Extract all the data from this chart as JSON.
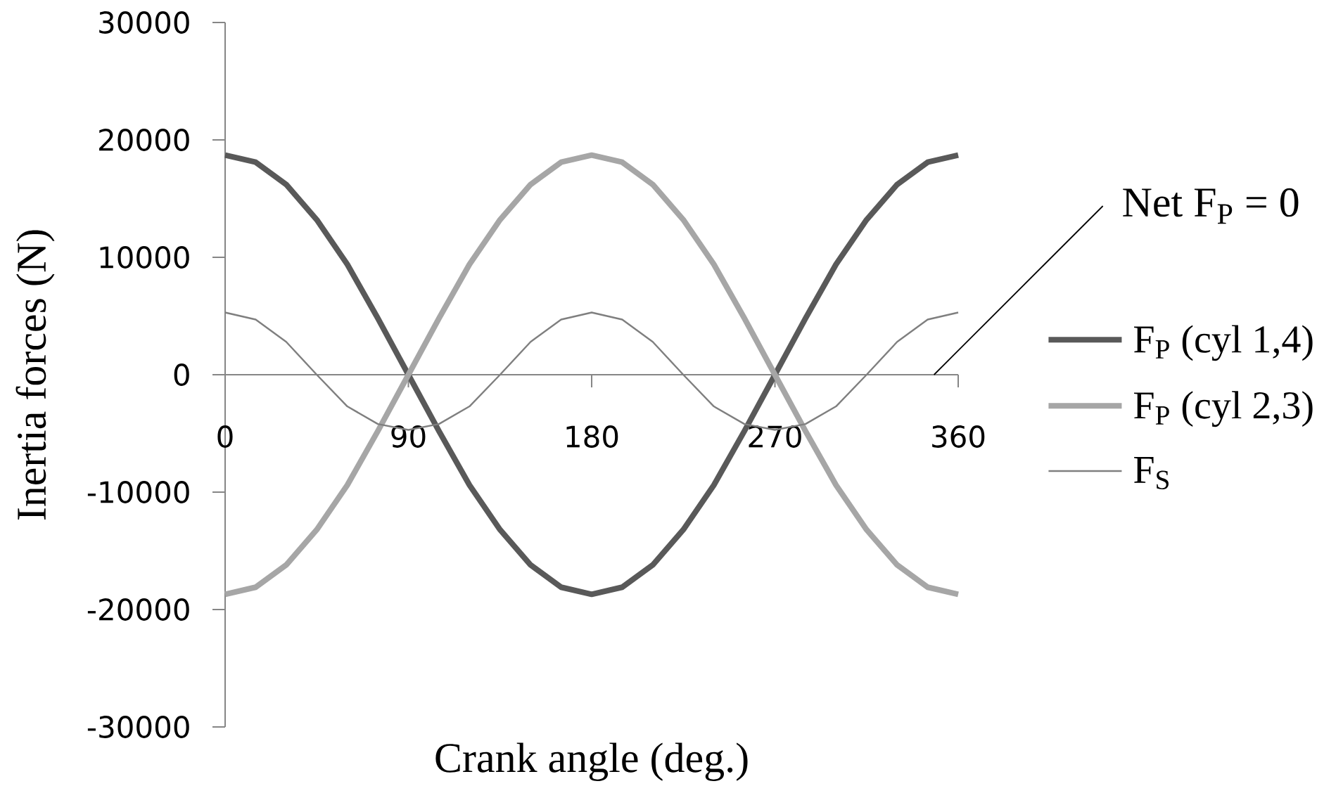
{
  "chart_data": {
    "type": "line",
    "xlabel": "Crank angle (deg.)",
    "ylabel": "Inertia forces (N)",
    "x": [
      0,
      15,
      30,
      45,
      60,
      75,
      90,
      105,
      120,
      135,
      150,
      165,
      180,
      195,
      210,
      225,
      240,
      255,
      270,
      285,
      300,
      315,
      330,
      345,
      360
    ],
    "xlim": [
      0,
      360
    ],
    "xticks": [
      0,
      90,
      180,
      270,
      360
    ],
    "ylim": [
      -30000,
      30000
    ],
    "yticks": [
      -30000,
      -20000,
      -10000,
      0,
      10000,
      20000,
      30000
    ],
    "legend": "right",
    "annotations": [
      "Net F$_{P}$ = 0"
    ],
    "series": [
      {
        "name": "F$_{P}$ (cyl 1,4)",
        "color": "#595959",
        "values": [
          18700,
          18100,
          16200,
          13200,
          9400,
          4800,
          0,
          -4800,
          -9400,
          -13200,
          -16200,
          -18100,
          -18700,
          -18100,
          -16200,
          -13200,
          -9400,
          -4800,
          0,
          4800,
          9400,
          13200,
          16200,
          18100,
          18700
        ]
      },
      {
        "name": "F$_{P}$ (cyl 2,3)",
        "color": "#a6a6a6",
        "values": [
          -18700,
          -18100,
          -16200,
          -13200,
          -9400,
          -4800,
          0,
          4800,
          9400,
          13200,
          16200,
          18100,
          18700,
          18100,
          16200,
          13200,
          9400,
          4800,
          0,
          -4800,
          -9400,
          -13200,
          -16200,
          -18100,
          -18700
        ]
      },
      {
        "name": "F$_{S}$",
        "color": "#7f7f7f",
        "values": [
          5300,
          4700,
          2800,
          0,
          -2700,
          -4200,
          -4700,
          -4200,
          -2700,
          0,
          2800,
          4700,
          5300,
          4700,
          2800,
          0,
          -2700,
          -4200,
          -4700,
          -4200,
          -2700,
          0,
          2800,
          4700,
          5300
        ]
      }
    ]
  }
}
